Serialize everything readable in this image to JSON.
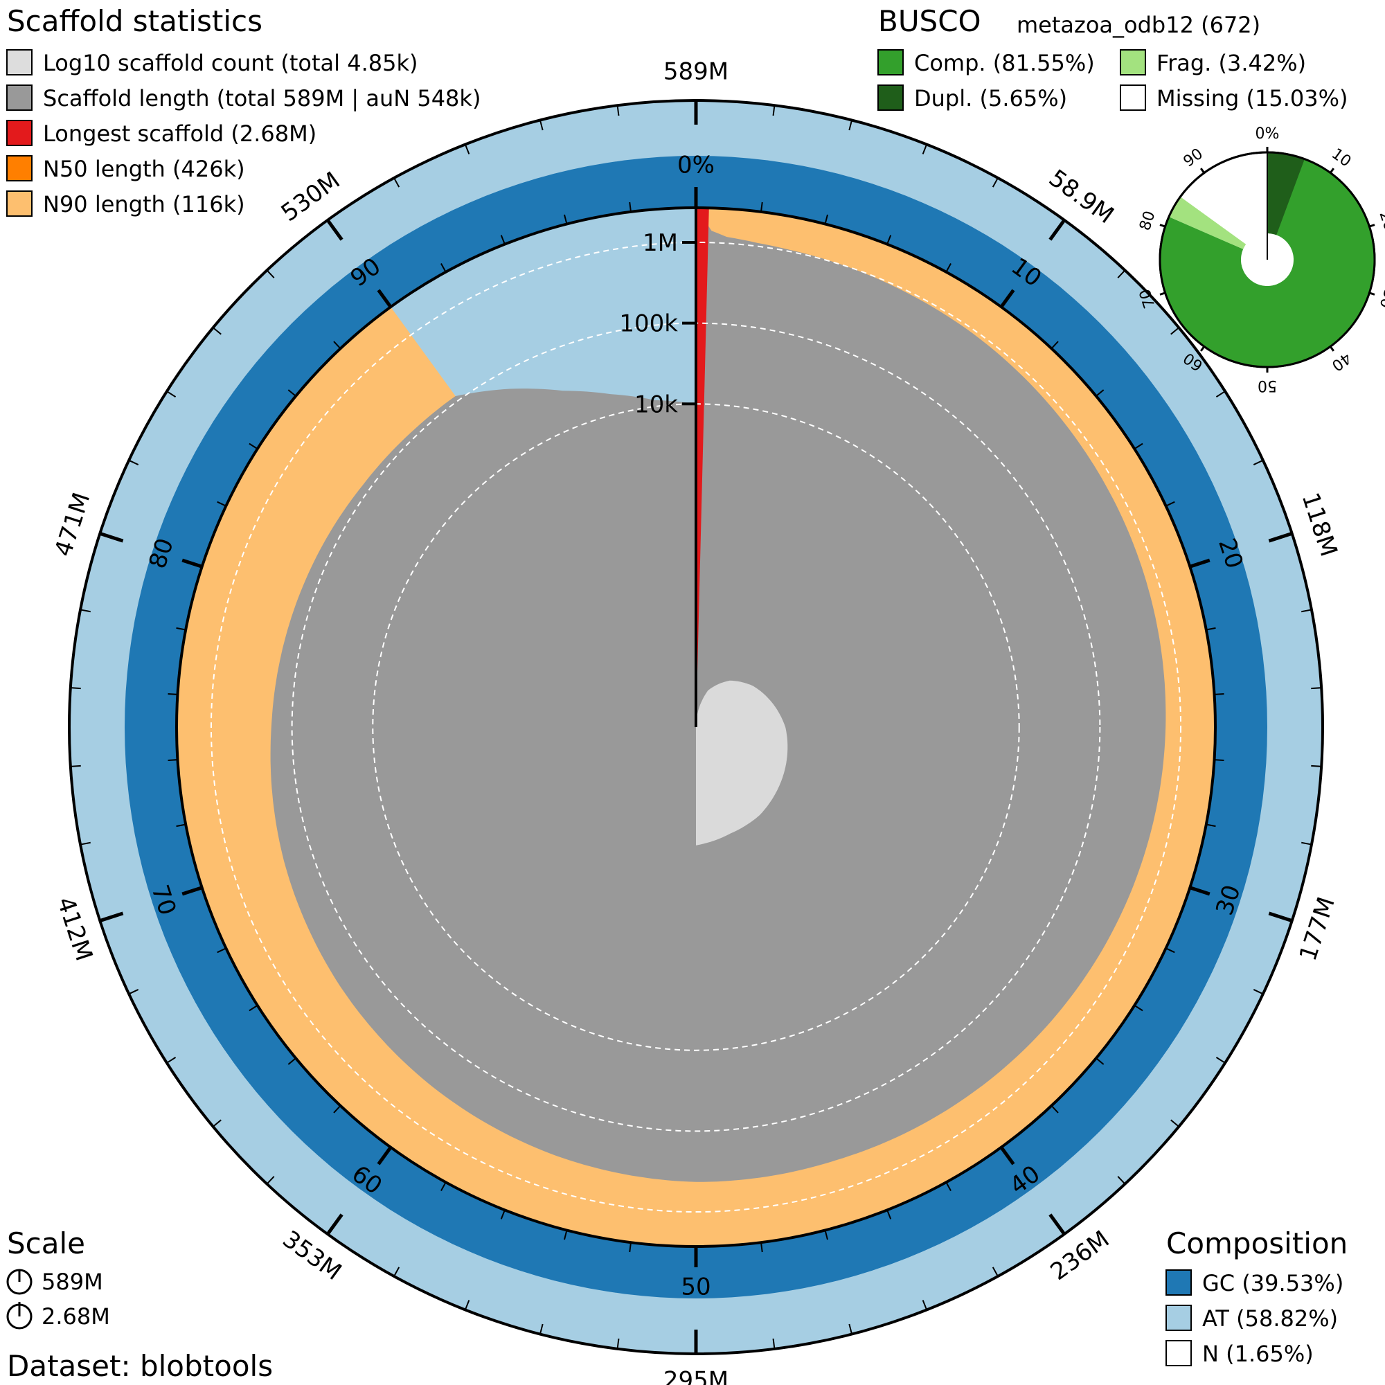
{
  "scaffold_stats": {
    "title": "Scaffold statistics",
    "items": [
      {
        "label": "Log10 scaffold count (total 4.85k)",
        "color": "#dddddd"
      },
      {
        "label": "Scaffold length (total 589M | auN 548k)",
        "color": "#999999"
      },
      {
        "label": "Longest scaffold (2.68M)",
        "color": "#e31a1c"
      },
      {
        "label": "N50 length (426k)",
        "color": "#ff7f00"
      },
      {
        "label": "N90 length (116k)",
        "color": "#fdbf6f"
      }
    ]
  },
  "busco": {
    "title": "BUSCO",
    "lineage": "metazoa_odb12 (672)",
    "items": [
      {
        "label": "Comp. (81.55%)",
        "color": "#33a02c"
      },
      {
        "label": "Frag. (3.42%)",
        "color": "#a3e27f"
      },
      {
        "label": "Dupl. (5.65%)",
        "color": "#1f5e1a"
      },
      {
        "label": "Missing (15.03%)",
        "color": "#ffffff"
      }
    ],
    "tick_labels": [
      "0%",
      "10",
      "20",
      "30",
      "40",
      "50",
      "60",
      "70",
      "80",
      "90"
    ]
  },
  "scale": {
    "title": "Scale",
    "items": [
      "589M",
      "2.68M"
    ]
  },
  "dataset": "Dataset: blobtools",
  "composition": {
    "title": "Composition",
    "items": [
      {
        "label": "GC (39.53%)",
        "color": "#1f78b4"
      },
      {
        "label": "AT (58.82%)",
        "color": "#a6cee3"
      },
      {
        "label": "N (1.65%)",
        "color": "#ffffff"
      }
    ]
  },
  "outer_axis": {
    "labels": [
      "589M",
      "58.9M",
      "118M",
      "177M",
      "236M",
      "295M",
      "353M",
      "412M",
      "471M",
      "530M"
    ]
  },
  "percent_axis": {
    "labels": [
      "0%",
      "10",
      "20",
      "30",
      "40",
      "50",
      "60",
      "70",
      "80",
      "90"
    ]
  },
  "radial_axis": {
    "labels": [
      "10k",
      "100k",
      "1M"
    ]
  },
  "chart_data": {
    "type": "snail",
    "total_length_bp": 589000000,
    "scaffold_count": 4850,
    "aun_bp": 548000,
    "longest_scaffold_bp": 2680000,
    "n50_bp": 426000,
    "n90_bp": 116000,
    "radial_scale": "log10",
    "radial_max_bp": 2680000,
    "scaffold_length_curve": {
      "x_percent": [
        0,
        0.5,
        1,
        2,
        3,
        5,
        7,
        10,
        15,
        20,
        25,
        30,
        35,
        40,
        45,
        50,
        55,
        60,
        65,
        70,
        75,
        80,
        85,
        88,
        90,
        92,
        94,
        96,
        98,
        100
      ],
      "length_bp": [
        2680000,
        1400000,
        1200000,
        1100000,
        1050000,
        1000000,
        950000,
        900000,
        800000,
        720000,
        650000,
        580000,
        520000,
        470000,
        430000,
        426000,
        380000,
        330000,
        280000,
        230000,
        180000,
        150000,
        125000,
        118000,
        116000,
        60000,
        30000,
        18000,
        12000,
        10000
      ]
    },
    "scaffold_count_log10_curve": {
      "x_percent": [
        0,
        5,
        10,
        15,
        20,
        25,
        30,
        35,
        40,
        45,
        50
      ],
      "log10_count": [
        0,
        1.2,
        1.8,
        2.2,
        2.5,
        2.8,
        3.0,
        3.2,
        3.4,
        3.5,
        3.7
      ]
    },
    "n50_percent": 50,
    "n90_percent": 90,
    "composition": {
      "GC": 39.53,
      "AT": 58.82,
      "N": 1.65
    },
    "busco": {
      "complete": 81.55,
      "duplicated": 5.65,
      "fragmented": 3.42,
      "missing": 15.03,
      "total": 672
    }
  }
}
